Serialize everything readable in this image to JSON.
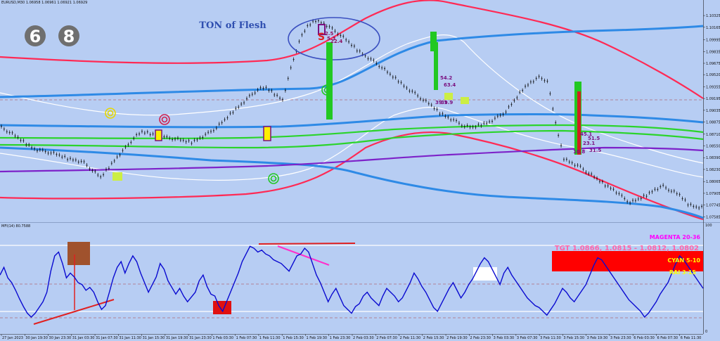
{
  "chart_data": {
    "type": "line",
    "header": "EURUSD,M30  1.06958 1.06961 1.06921 1.06929",
    "title": "TON of Flesh",
    "badges": [
      "6",
      "8"
    ],
    "price_ticks": [
      "1.10325",
      "1.10165",
      "1.09995",
      "1.09835",
      "1.09675",
      "1.09520",
      "1.09355",
      "1.09195",
      "1.09035",
      "1.08875",
      "1.08710",
      "1.08550",
      "1.08390",
      "1.08230",
      "1.08065",
      "1.07905",
      "1.07745",
      "1.07585"
    ],
    "time_ticks": [
      "27 Jan 2023",
      "30 Jan 19:30",
      "30 Jan 23:30",
      "31 Jan 03:30",
      "31 Jan 07:30",
      "31 Jan 11:30",
      "31 Jan 15:30",
      "31 Jan 19:30",
      "31 Jan 23:30",
      "1 Feb 03:30",
      "1 Feb 07:30",
      "1 Feb 11:30",
      "1 Feb 15:30",
      "1 Feb 19:30",
      "1 Feb 23:30",
      "2 Feb 03:30",
      "2 Feb 07:30",
      "2 Feb 11:30",
      "2 Feb 15:30",
      "2 Feb 19:30",
      "2 Feb 23:30",
      "3 Feb 03:30",
      "3 Feb 07:30",
      "3 Feb 11:30",
      "3 Feb 15:30",
      "3 Feb 19:30",
      "3 Feb 23:30",
      "6 Feb 03:30",
      "6 Feb 07:30",
      "6 Feb 11:30"
    ],
    "ylim": [
      1.0755,
      1.1046
    ],
    "price_series": [
      1.088,
      1.0874,
      1.0866,
      1.0858,
      1.0851,
      1.0848,
      1.0846,
      1.0842,
      1.0838,
      1.0836,
      1.0832,
      1.0822,
      1.0812,
      1.0826,
      1.084,
      1.0852,
      1.0866,
      1.0874,
      1.0872,
      1.0868,
      1.0866,
      1.0865,
      1.0862,
      1.086,
      1.0866,
      1.0872,
      1.088,
      1.089,
      1.0902,
      1.0912,
      1.0922,
      1.0932,
      1.0934,
      1.0926,
      1.0918,
      1.096,
      1.0998,
      1.1018,
      1.1026,
      1.1022,
      1.1014,
      1.1006,
      1.0996,
      1.0986,
      1.0978,
      1.097,
      1.0962,
      1.0952,
      1.0944,
      1.0934,
      1.0926,
      1.0918,
      1.091,
      1.09,
      1.0894,
      1.0888,
      1.0882,
      1.088,
      1.0884,
      1.0888,
      1.0894,
      1.0902,
      1.0916,
      1.0932,
      1.0942,
      1.0948,
      1.0944,
      1.0886,
      1.0838,
      1.0832,
      1.0826,
      1.0818,
      1.081,
      1.0802,
      1.0796,
      1.0786,
      1.0778,
      1.0782,
      1.0788,
      1.0796,
      1.08,
      1.0794,
      1.0788,
      1.0776,
      1.0772
    ],
    "mfi_label": "MFI(14) 80.7588",
    "mfi_levels": {
      "upper": 80,
      "middle": 50,
      "lower": 20
    },
    "mfi_ticks": [
      "100",
      "0"
    ],
    "mfi_series": [
      58,
      66,
      55,
      50,
      42,
      33,
      25,
      18,
      14,
      18,
      24,
      30,
      40,
      62,
      78,
      82,
      70,
      55,
      60,
      56,
      50,
      48,
      42,
      45,
      40,
      30,
      22,
      26,
      40,
      55,
      66,
      72,
      60,
      70,
      78,
      72,
      60,
      50,
      40,
      48,
      56,
      70,
      64,
      52,
      45,
      38,
      44,
      36,
      30,
      35,
      40,
      52,
      58,
      46,
      38,
      36,
      26,
      20,
      30,
      40,
      50,
      60,
      72,
      80,
      88,
      86,
      82,
      84,
      80,
      78,
      74,
      72,
      70,
      66,
      62,
      70,
      78,
      80,
      86,
      82,
      70,
      58,
      50,
      40,
      30,
      38,
      44,
      35,
      26,
      22,
      18,
      25,
      28,
      36,
      40,
      34,
      30,
      26,
      36,
      44,
      40,
      36,
      30,
      34,
      42,
      50,
      60,
      54,
      46,
      40,
      32,
      24,
      20,
      28,
      36,
      44,
      50,
      42,
      34,
      40,
      48,
      54,
      62,
      70,
      76,
      72,
      64,
      56,
      48,
      60,
      66,
      58,
      52,
      46,
      40,
      34,
      30,
      26,
      24,
      20,
      16,
      22,
      28,
      36,
      44,
      40,
      34,
      30,
      36,
      42,
      48,
      58,
      68,
      76,
      74,
      68,
      62,
      56,
      50,
      44,
      38,
      32,
      28,
      24,
      20,
      14,
      18,
      24,
      30,
      38,
      44,
      50,
      60,
      70,
      78,
      74,
      68,
      62,
      56,
      50,
      44
    ],
    "legend_texts": [
      {
        "text": "MAGENTA 20-36",
        "color": "#ff00ff"
      },
      {
        "text": "TGT 1.0866, 1.0815 - 1.0812, 1.0802",
        "color": "#ff66aa"
      },
      {
        "text": "CYAN 5-10",
        "color": "#ffff00"
      },
      {
        "text": "RAI 3-15",
        "color": "#ffff00"
      }
    ],
    "annotations": {
      "sell_box_1": [
        "S",
        "2.5",
        "5.3",
        "22.4"
      ],
      "sell_box_2": [
        "54.2",
        "63.4",
        "39.1",
        "39.9"
      ],
      "sell_box_3": [
        "45.1",
        "51.5",
        "23.1",
        "10.8",
        "31.5"
      ]
    },
    "colors": {
      "background": "#b7cdf3",
      "candles": "#000000",
      "blue_ma": "#2e8ae6",
      "green_ma": "#2bd42b",
      "purple_ma": "#7d22c9",
      "red_band": "#ff2a55",
      "white_band": "#ffffff",
      "mfi_line": "#0a0ad0",
      "title": "#2f4fb0"
    }
  }
}
